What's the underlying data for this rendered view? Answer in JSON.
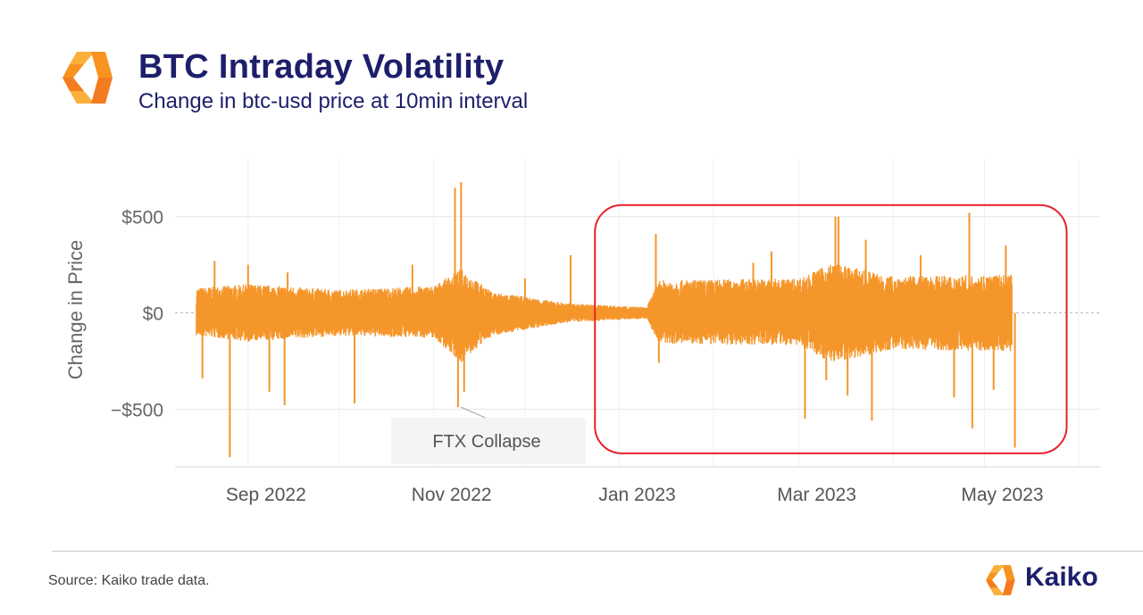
{
  "header": {
    "title": "BTC Intraday Volatility",
    "subtitle": "Change in btc-usd price at 10min interval"
  },
  "footer": {
    "source": "Source: Kaiko trade data.",
    "brand": "Kaiko"
  },
  "colors": {
    "series": "#f5962b",
    "highlight_box": "#e8202a",
    "title": "#1d1f6b",
    "logo_orange": "#f7931e",
    "logo_yellow": "#fbb03b"
  },
  "chart_data": {
    "type": "line",
    "title": "",
    "xlabel": "",
    "ylabel": "Change in Price",
    "ylim": [
      -800,
      800
    ],
    "xlim": [
      "2022-08-08",
      "2023-06-08"
    ],
    "yticks": [
      {
        "value": 500,
        "label": "$500"
      },
      {
        "value": 0,
        "label": "$0"
      },
      {
        "value": -500,
        "label": "−$500"
      }
    ],
    "xticks": [
      {
        "value": "2022-09-01",
        "label": "Sep 2022"
      },
      {
        "value": "2022-11-01",
        "label": "Nov 2022"
      },
      {
        "value": "2023-01-01",
        "label": "Jan 2023"
      },
      {
        "value": "2023-03-01",
        "label": "Mar 2023"
      },
      {
        "value": "2023-05-01",
        "label": "May 2023"
      }
    ],
    "grid": true,
    "series": [
      {
        "color": "#f5962b",
        "envelope": [
          {
            "x": "2022-08-15",
            "low": -120,
            "high": 130
          },
          {
            "x": "2022-09-01",
            "low": -150,
            "high": 150
          },
          {
            "x": "2022-10-01",
            "low": -120,
            "high": 120
          },
          {
            "x": "2022-11-01",
            "low": -130,
            "high": 140
          },
          {
            "x": "2022-11-10",
            "low": -260,
            "high": 230
          },
          {
            "x": "2022-11-20",
            "low": -120,
            "high": 110
          },
          {
            "x": "2022-12-15",
            "low": -50,
            "high": 50
          },
          {
            "x": "2023-01-10",
            "low": -30,
            "high": 30
          },
          {
            "x": "2023-01-14",
            "low": -160,
            "high": 170
          },
          {
            "x": "2023-03-01",
            "low": -170,
            "high": 180
          },
          {
            "x": "2023-03-12",
            "low": -260,
            "high": 260
          },
          {
            "x": "2023-04-01",
            "low": -190,
            "high": 190
          },
          {
            "x": "2023-05-10",
            "low": -200,
            "high": 200
          }
        ],
        "spikes": [
          {
            "x": "2022-08-17",
            "y": -340
          },
          {
            "x": "2022-08-21",
            "y": 270
          },
          {
            "x": "2022-08-26",
            "y": -750
          },
          {
            "x": "2022-09-01",
            "y": 250
          },
          {
            "x": "2022-09-08",
            "y": -410
          },
          {
            "x": "2022-09-13",
            "y": -480
          },
          {
            "x": "2022-09-14",
            "y": 210
          },
          {
            "x": "2022-10-06",
            "y": -470
          },
          {
            "x": "2022-10-25",
            "y": 250
          },
          {
            "x": "2022-11-08",
            "y": 650
          },
          {
            "x": "2022-11-09",
            "y": -490
          },
          {
            "x": "2022-11-10",
            "y": 680
          },
          {
            "x": "2022-11-11",
            "y": -410
          },
          {
            "x": "2022-12-01",
            "y": 180
          },
          {
            "x": "2022-12-16",
            "y": 300
          },
          {
            "x": "2023-01-13",
            "y": 410
          },
          {
            "x": "2023-01-14",
            "y": -260
          },
          {
            "x": "2023-02-14",
            "y": 260
          },
          {
            "x": "2023-02-20",
            "y": 320
          },
          {
            "x": "2023-03-03",
            "y": -550
          },
          {
            "x": "2023-03-10",
            "y": -350
          },
          {
            "x": "2023-03-13",
            "y": 500
          },
          {
            "x": "2023-03-14",
            "y": 500
          },
          {
            "x": "2023-03-17",
            "y": -430
          },
          {
            "x": "2023-03-23",
            "y": 380
          },
          {
            "x": "2023-03-25",
            "y": -560
          },
          {
            "x": "2023-04-10",
            "y": 300
          },
          {
            "x": "2023-04-21",
            "y": -440
          },
          {
            "x": "2023-04-26",
            "y": 520
          },
          {
            "x": "2023-04-27",
            "y": -600
          },
          {
            "x": "2023-05-04",
            "y": -400
          },
          {
            "x": "2023-05-08",
            "y": 350
          },
          {
            "x": "2023-05-11",
            "y": -700
          }
        ]
      }
    ],
    "annotations": [
      {
        "type": "label",
        "text": "FTX Collapse",
        "x": "2022-11-10",
        "y": -490
      },
      {
        "type": "highlight_box",
        "x_start": "2022-12-24",
        "x_end": "2023-05-28",
        "y_start": -730,
        "y_end": 560
      }
    ]
  }
}
